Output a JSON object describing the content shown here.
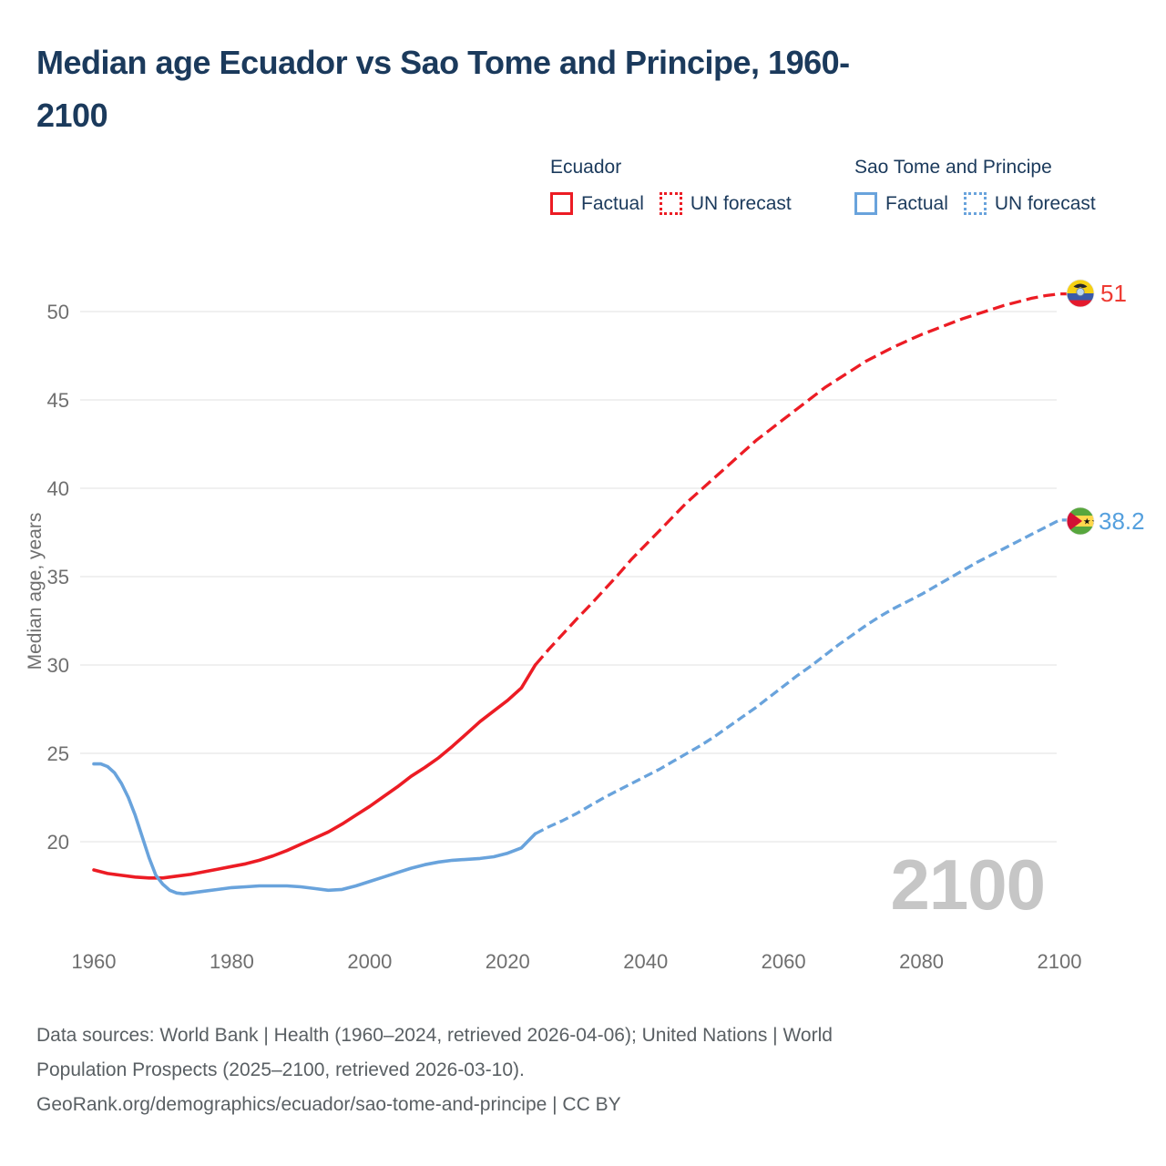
{
  "title": {
    "line1": "Median age Ecuador vs Sao Tome and Principe, 1960-",
    "line2": "2100"
  },
  "legend": {
    "groups": [
      {
        "label": "Ecuador",
        "items": [
          {
            "label": "Factual",
            "style": "solid",
            "color": "#ec1c24"
          },
          {
            "label": "UN forecast",
            "style": "dotted",
            "color": "#ec1c24"
          }
        ]
      },
      {
        "label": "Sao Tome and Principe",
        "items": [
          {
            "label": "Factual",
            "style": "solid",
            "color": "#69a3dc"
          },
          {
            "label": "UN forecast",
            "style": "dotted",
            "color": "#69a3dc"
          }
        ]
      }
    ]
  },
  "chart_data": {
    "type": "line",
    "title": "Median age Ecuador vs Sao Tome and Principe, 1960-2100",
    "ylabel": "Median age, years",
    "xlabel": "",
    "x_range": [
      1960,
      2100
    ],
    "y_range": [
      15,
      52
    ],
    "x_ticks": [
      1960,
      1980,
      2000,
      2020,
      2040,
      2060,
      2080,
      2100
    ],
    "y_ticks": [
      20,
      25,
      30,
      35,
      40,
      45,
      50
    ],
    "grid": "horizontal",
    "legend_position": "top-right",
    "watermark": "2100",
    "series": [
      {
        "name": "Ecuador Factual",
        "color": "#ec1c24",
        "dashed": false,
        "points": [
          [
            1960,
            18.4
          ],
          [
            1962,
            18.2
          ],
          [
            1964,
            18.1
          ],
          [
            1966,
            18.0
          ],
          [
            1968,
            17.95
          ],
          [
            1970,
            17.95
          ],
          [
            1972,
            18.05
          ],
          [
            1974,
            18.15
          ],
          [
            1976,
            18.3
          ],
          [
            1978,
            18.45
          ],
          [
            1980,
            18.6
          ],
          [
            1982,
            18.75
          ],
          [
            1984,
            18.95
          ],
          [
            1986,
            19.2
          ],
          [
            1988,
            19.5
          ],
          [
            1990,
            19.85
          ],
          [
            1992,
            20.2
          ],
          [
            1994,
            20.55
          ],
          [
            1996,
            21.0
          ],
          [
            1998,
            21.5
          ],
          [
            2000,
            22.0
          ],
          [
            2002,
            22.55
          ],
          [
            2004,
            23.1
          ],
          [
            2006,
            23.7
          ],
          [
            2008,
            24.2
          ],
          [
            2010,
            24.75
          ],
          [
            2012,
            25.4
          ],
          [
            2014,
            26.1
          ],
          [
            2016,
            26.8
          ],
          [
            2018,
            27.4
          ],
          [
            2020,
            28.0
          ],
          [
            2022,
            28.7
          ],
          [
            2024,
            30.0
          ]
        ]
      },
      {
        "name": "Ecuador UN forecast",
        "color": "#ec1c24",
        "dashed": true,
        "points": [
          [
            2024,
            30.0
          ],
          [
            2026,
            30.9
          ],
          [
            2028,
            31.75
          ],
          [
            2030,
            32.6
          ],
          [
            2032,
            33.4
          ],
          [
            2034,
            34.25
          ],
          [
            2036,
            35.1
          ],
          [
            2038,
            36.0
          ],
          [
            2040,
            36.8
          ],
          [
            2042,
            37.6
          ],
          [
            2044,
            38.4
          ],
          [
            2046,
            39.2
          ],
          [
            2048,
            39.9
          ],
          [
            2050,
            40.6
          ],
          [
            2052,
            41.3
          ],
          [
            2054,
            42.0
          ],
          [
            2056,
            42.7
          ],
          [
            2058,
            43.3
          ],
          [
            2060,
            43.9
          ],
          [
            2062,
            44.5
          ],
          [
            2064,
            45.1
          ],
          [
            2066,
            45.7
          ],
          [
            2068,
            46.2
          ],
          [
            2070,
            46.7
          ],
          [
            2072,
            47.2
          ],
          [
            2074,
            47.6
          ],
          [
            2076,
            48.0
          ],
          [
            2078,
            48.35
          ],
          [
            2080,
            48.7
          ],
          [
            2082,
            49.0
          ],
          [
            2084,
            49.3
          ],
          [
            2086,
            49.6
          ],
          [
            2088,
            49.85
          ],
          [
            2090,
            50.1
          ],
          [
            2092,
            50.35
          ],
          [
            2094,
            50.55
          ],
          [
            2096,
            50.75
          ],
          [
            2098,
            50.9
          ],
          [
            2100,
            51.0
          ]
        ]
      },
      {
        "name": "Sao Tome and Principe Factual",
        "color": "#69a3dc",
        "dashed": false,
        "points": [
          [
            1960,
            24.4
          ],
          [
            1961,
            24.4
          ],
          [
            1962,
            24.25
          ],
          [
            1963,
            23.9
          ],
          [
            1964,
            23.3
          ],
          [
            1965,
            22.5
          ],
          [
            1966,
            21.5
          ],
          [
            1967,
            20.3
          ],
          [
            1968,
            19.1
          ],
          [
            1969,
            18.1
          ],
          [
            1970,
            17.6
          ],
          [
            1971,
            17.25
          ],
          [
            1972,
            17.1
          ],
          [
            1973,
            17.05
          ],
          [
            1974,
            17.1
          ],
          [
            1976,
            17.2
          ],
          [
            1978,
            17.3
          ],
          [
            1980,
            17.4
          ],
          [
            1982,
            17.45
          ],
          [
            1984,
            17.5
          ],
          [
            1986,
            17.5
          ],
          [
            1988,
            17.5
          ],
          [
            1990,
            17.45
          ],
          [
            1992,
            17.35
          ],
          [
            1994,
            17.25
          ],
          [
            1996,
            17.3
          ],
          [
            1998,
            17.5
          ],
          [
            2000,
            17.75
          ],
          [
            2002,
            18.0
          ],
          [
            2004,
            18.25
          ],
          [
            2006,
            18.5
          ],
          [
            2008,
            18.7
          ],
          [
            2010,
            18.85
          ],
          [
            2012,
            18.95
          ],
          [
            2014,
            19.0
          ],
          [
            2016,
            19.05
          ],
          [
            2018,
            19.15
          ],
          [
            2020,
            19.35
          ],
          [
            2022,
            19.65
          ],
          [
            2024,
            20.45
          ]
        ]
      },
      {
        "name": "Sao Tome and Principe UN forecast",
        "color": "#69a3dc",
        "dashed": true,
        "points": [
          [
            2024,
            20.45
          ],
          [
            2026,
            20.85
          ],
          [
            2028,
            21.2
          ],
          [
            2030,
            21.6
          ],
          [
            2032,
            22.05
          ],
          [
            2034,
            22.5
          ],
          [
            2036,
            22.9
          ],
          [
            2038,
            23.3
          ],
          [
            2040,
            23.7
          ],
          [
            2042,
            24.1
          ],
          [
            2044,
            24.55
          ],
          [
            2046,
            25.0
          ],
          [
            2048,
            25.45
          ],
          [
            2050,
            25.95
          ],
          [
            2052,
            26.5
          ],
          [
            2054,
            27.05
          ],
          [
            2056,
            27.6
          ],
          [
            2058,
            28.2
          ],
          [
            2060,
            28.8
          ],
          [
            2062,
            29.4
          ],
          [
            2064,
            29.95
          ],
          [
            2066,
            30.55
          ],
          [
            2068,
            31.15
          ],
          [
            2070,
            31.7
          ],
          [
            2072,
            32.25
          ],
          [
            2074,
            32.75
          ],
          [
            2076,
            33.2
          ],
          [
            2078,
            33.6
          ],
          [
            2080,
            34.0
          ],
          [
            2082,
            34.45
          ],
          [
            2084,
            34.9
          ],
          [
            2086,
            35.35
          ],
          [
            2088,
            35.8
          ],
          [
            2090,
            36.2
          ],
          [
            2092,
            36.6
          ],
          [
            2094,
            37.0
          ],
          [
            2096,
            37.4
          ],
          [
            2098,
            37.8
          ],
          [
            2100,
            38.2
          ]
        ]
      }
    ],
    "end_labels": [
      {
        "series": "Ecuador",
        "text": "51",
        "color": "#ee3b33",
        "flag": "ecuador"
      },
      {
        "series": "Sao Tome and Principe",
        "text": "38.2",
        "color": "#55a0de",
        "flag": "sao-tome-and-principe"
      }
    ]
  },
  "footer": {
    "line1": "Data sources: World Bank | Health (1960–2024, retrieved 2026-04-06); United Nations | World",
    "line2": "Population Prospects (2025–2100, retrieved 2026-03-10).",
    "line3": "GeoRank.org/demographics/ecuador/sao-tome-and-principe | CC BY"
  }
}
